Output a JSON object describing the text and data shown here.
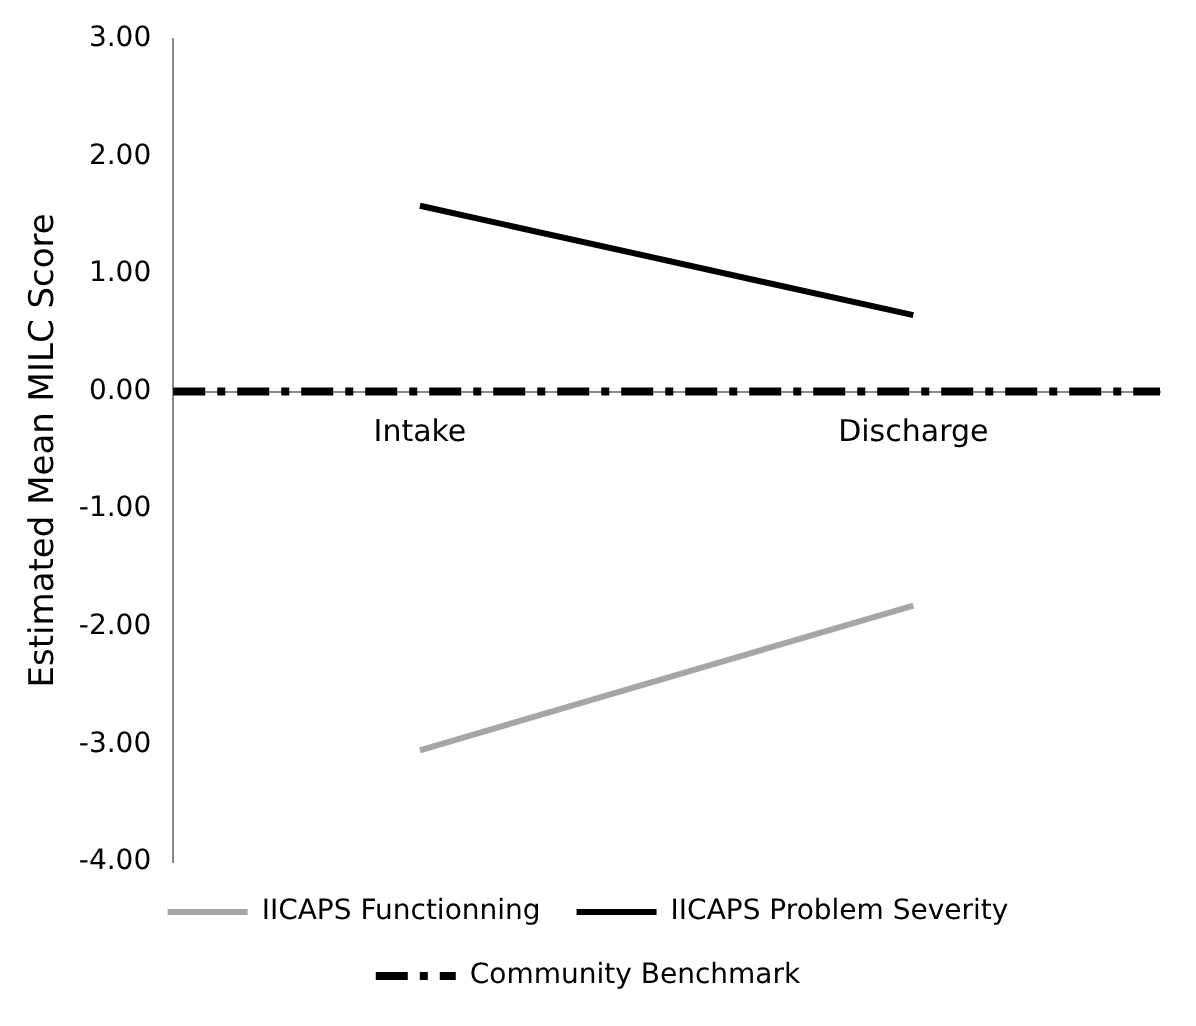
{
  "chart_data": {
    "type": "line",
    "ylabel": "Estimated Mean MILC Score",
    "categories": [
      "Intake",
      "Discharge"
    ],
    "series": [
      {
        "name": "IICAPS Functionning",
        "color": "#a6a6a6",
        "values": [
          -3.05,
          -1.82
        ]
      },
      {
        "name": "IICAPS Problem Severity",
        "color": "#000000",
        "values": [
          1.58,
          0.65
        ]
      }
    ],
    "ylim": [
      -4,
      3
    ],
    "yticks": [
      {
        "value": -4,
        "label": "-4.00"
      },
      {
        "value": -3,
        "label": "-3.00"
      },
      {
        "value": -2,
        "label": "-2.00"
      },
      {
        "value": -1,
        "label": "-1.00"
      },
      {
        "value": 0,
        "label": "0.00"
      },
      {
        "value": 1,
        "label": "1.00"
      },
      {
        "value": 2,
        "label": "2.00"
      },
      {
        "value": 3,
        "label": "3.00"
      }
    ],
    "ref_lines": [
      {
        "axis": "y",
        "value": 0,
        "label": "Community Benchmark",
        "color": "#000000",
        "line_style": "dashed"
      }
    ],
    "legend": "bottom",
    "marker": "none",
    "grid": false,
    "line_style": "solid"
  }
}
